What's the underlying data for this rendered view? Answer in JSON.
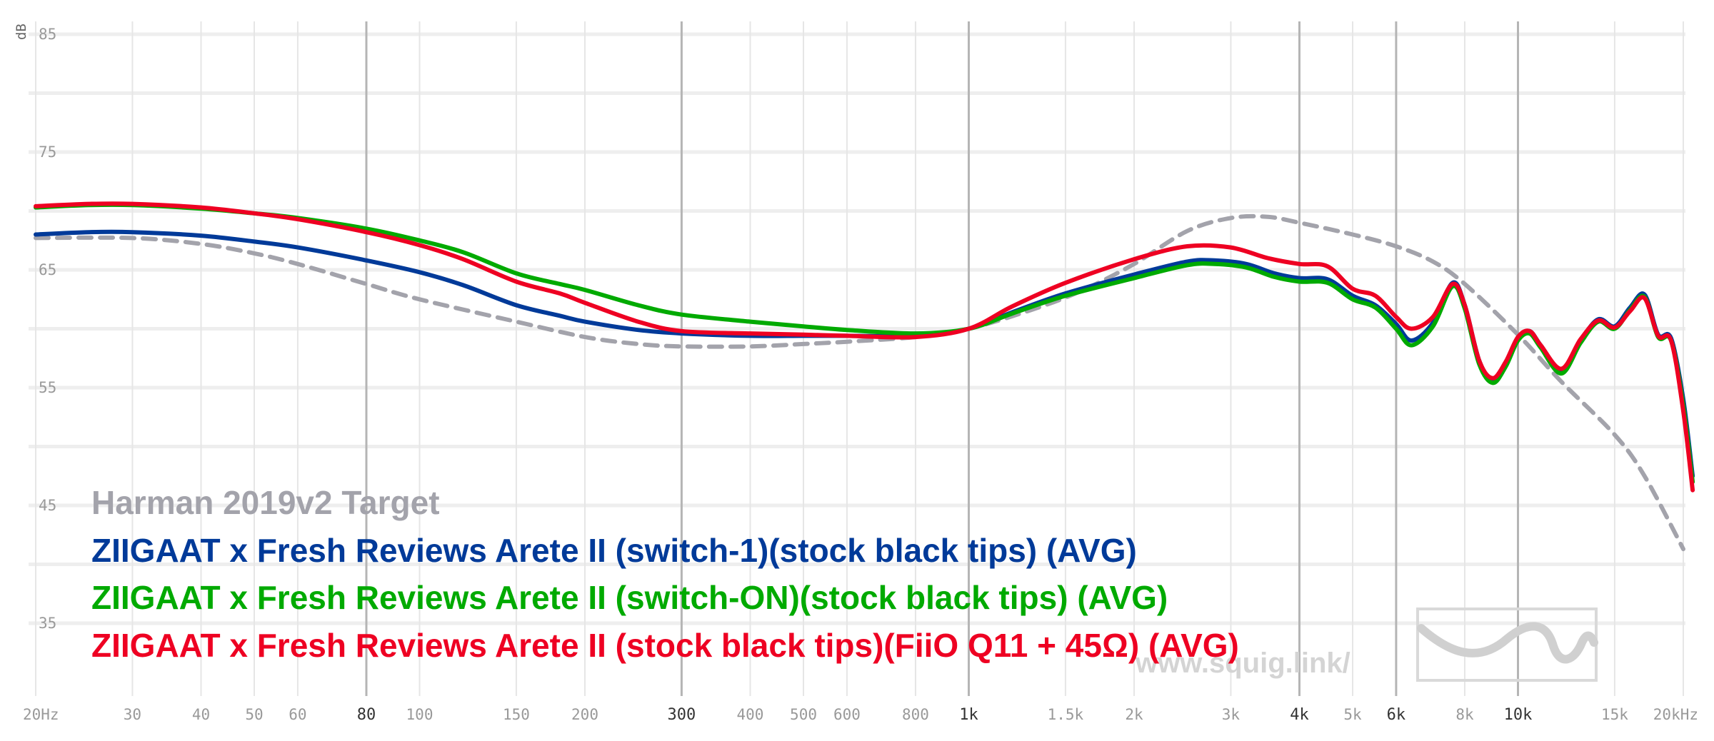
{
  "chart_data": {
    "type": "line",
    "ylabel": "dB",
    "ylim": [
      30,
      87
    ],
    "xlim": [
      20,
      20000
    ],
    "x_scale": "log",
    "yticks": [
      35,
      45,
      55,
      65,
      75,
      85
    ],
    "xticks": [
      {
        "label": "20Hz",
        "value": 20,
        "major": false
      },
      {
        "label": "30",
        "value": 30,
        "major": false
      },
      {
        "label": "40",
        "value": 40,
        "major": false
      },
      {
        "label": "50",
        "value": 50,
        "major": false
      },
      {
        "label": "60",
        "value": 60,
        "major": false
      },
      {
        "label": "80",
        "value": 80,
        "major": true
      },
      {
        "label": "100",
        "value": 100,
        "major": false
      },
      {
        "label": "150",
        "value": 150,
        "major": false
      },
      {
        "label": "200",
        "value": 200,
        "major": false
      },
      {
        "label": "300",
        "value": 300,
        "major": true
      },
      {
        "label": "400",
        "value": 400,
        "major": false
      },
      {
        "label": "500",
        "value": 500,
        "major": false
      },
      {
        "label": "600",
        "value": 600,
        "major": false
      },
      {
        "label": "800",
        "value": 800,
        "major": false
      },
      {
        "label": "1k",
        "value": 1000,
        "major": true
      },
      {
        "label": "1.5k",
        "value": 1500,
        "major": false
      },
      {
        "label": "2k",
        "value": 2000,
        "major": false
      },
      {
        "label": "3k",
        "value": 3000,
        "major": false
      },
      {
        "label": "4k",
        "value": 4000,
        "major": true
      },
      {
        "label": "5k",
        "value": 5000,
        "major": false
      },
      {
        "label": "6k",
        "value": 6000,
        "major": true
      },
      {
        "label": "8k",
        "value": 8000,
        "major": false
      },
      {
        "label": "10k",
        "value": 10000,
        "major": true
      },
      {
        "label": "15k",
        "value": 15000,
        "major": false
      },
      {
        "label": "20kHz",
        "value": 20000,
        "major": false
      }
    ],
    "grid": true,
    "legend_position": "bottom-left",
    "series": [
      {
        "name": "Harman 2019v2 Target",
        "color": "#a3a3ab",
        "dashed": true,
        "points": [
          [
            20,
            67.7
          ],
          [
            30,
            67.7
          ],
          [
            40,
            67.2
          ],
          [
            50,
            66.4
          ],
          [
            60,
            65.5
          ],
          [
            80,
            63.8
          ],
          [
            100,
            62.5
          ],
          [
            150,
            60.6
          ],
          [
            200,
            59.3
          ],
          [
            250,
            58.7
          ],
          [
            300,
            58.5
          ],
          [
            400,
            58.5
          ],
          [
            500,
            58.7
          ],
          [
            600,
            58.9
          ],
          [
            800,
            59.3
          ],
          [
            1000,
            60.0
          ],
          [
            1300,
            61.6
          ],
          [
            1600,
            63.2
          ],
          [
            2000,
            65.5
          ],
          [
            2500,
            68.3
          ],
          [
            3000,
            69.4
          ],
          [
            3500,
            69.5
          ],
          [
            4000,
            69.0
          ],
          [
            5000,
            68.0
          ],
          [
            6000,
            67.0
          ],
          [
            7000,
            65.7
          ],
          [
            8000,
            63.8
          ],
          [
            10000,
            59.5
          ],
          [
            12000,
            55.5
          ],
          [
            15000,
            51.0
          ],
          [
            17000,
            47.5
          ],
          [
            20000,
            41.3
          ]
        ]
      },
      {
        "name": "ZIIGAAT x Fresh Reviews Arete II (switch-1)(stock black tips) (AVG)",
        "color": "#003a99",
        "dashed": false,
        "points": [
          [
            20,
            68.0
          ],
          [
            25,
            68.2
          ],
          [
            30,
            68.2
          ],
          [
            40,
            67.9
          ],
          [
            50,
            67.4
          ],
          [
            60,
            66.9
          ],
          [
            80,
            65.8
          ],
          [
            100,
            64.8
          ],
          [
            120,
            63.7
          ],
          [
            150,
            62.0
          ],
          [
            180,
            61.1
          ],
          [
            200,
            60.6
          ],
          [
            250,
            59.9
          ],
          [
            300,
            59.6
          ],
          [
            400,
            59.4
          ],
          [
            500,
            59.4
          ],
          [
            600,
            59.4
          ],
          [
            800,
            59.4
          ],
          [
            1000,
            60.0
          ],
          [
            1200,
            61.4
          ],
          [
            1500,
            63.0
          ],
          [
            2000,
            64.6
          ],
          [
            2500,
            65.7
          ],
          [
            2800,
            65.8
          ],
          [
            3200,
            65.5
          ],
          [
            3600,
            64.7
          ],
          [
            4000,
            64.3
          ],
          [
            4500,
            64.2
          ],
          [
            5000,
            62.8
          ],
          [
            5500,
            62.0
          ],
          [
            6000,
            60.4
          ],
          [
            6400,
            59.0
          ],
          [
            7000,
            60.5
          ],
          [
            7600,
            63.9
          ],
          [
            8000,
            62.0
          ],
          [
            8500,
            57.3
          ],
          [
            9000,
            55.6
          ],
          [
            9500,
            57.0
          ],
          [
            10000,
            59.2
          ],
          [
            10500,
            59.8
          ],
          [
            11000,
            58.6
          ],
          [
            12000,
            56.4
          ],
          [
            13000,
            59.0
          ],
          [
            14000,
            60.8
          ],
          [
            15000,
            60.2
          ],
          [
            16000,
            61.8
          ],
          [
            17000,
            62.9
          ],
          [
            18000,
            59.5
          ],
          [
            19000,
            59.2
          ],
          [
            20000,
            54.0
          ],
          [
            20800,
            47.5
          ]
        ]
      },
      {
        "name": "ZIIGAAT x Fresh Reviews Arete II (switch-ON)(stock black tips) (AVG)",
        "color": "#00aa00",
        "dashed": false,
        "points": [
          [
            20,
            70.3
          ],
          [
            25,
            70.5
          ],
          [
            30,
            70.5
          ],
          [
            40,
            70.2
          ],
          [
            50,
            69.8
          ],
          [
            60,
            69.4
          ],
          [
            80,
            68.5
          ],
          [
            100,
            67.5
          ],
          [
            120,
            66.5
          ],
          [
            150,
            64.7
          ],
          [
            180,
            63.8
          ],
          [
            200,
            63.3
          ],
          [
            250,
            62.0
          ],
          [
            300,
            61.2
          ],
          [
            400,
            60.6
          ],
          [
            500,
            60.2
          ],
          [
            600,
            59.9
          ],
          [
            800,
            59.6
          ],
          [
            1000,
            60.0
          ],
          [
            1200,
            61.3
          ],
          [
            1500,
            62.8
          ],
          [
            2000,
            64.3
          ],
          [
            2500,
            65.4
          ],
          [
            2800,
            65.5
          ],
          [
            3200,
            65.2
          ],
          [
            3600,
            64.4
          ],
          [
            4000,
            64.0
          ],
          [
            4500,
            63.9
          ],
          [
            5000,
            62.5
          ],
          [
            5500,
            61.8
          ],
          [
            6000,
            60.0
          ],
          [
            6400,
            58.6
          ],
          [
            7000,
            60.2
          ],
          [
            7600,
            63.6
          ],
          [
            8000,
            61.7
          ],
          [
            8500,
            57.0
          ],
          [
            9000,
            55.4
          ],
          [
            9500,
            56.8
          ],
          [
            10000,
            59.0
          ],
          [
            10500,
            59.6
          ],
          [
            11000,
            58.4
          ],
          [
            12000,
            56.2
          ],
          [
            13000,
            58.8
          ],
          [
            14000,
            60.6
          ],
          [
            15000,
            60.0
          ],
          [
            16000,
            61.6
          ],
          [
            17000,
            62.7
          ],
          [
            18000,
            59.3
          ],
          [
            19000,
            59.0
          ],
          [
            20000,
            53.5
          ],
          [
            20800,
            47.0
          ]
        ]
      },
      {
        "name": "ZIIGAAT x Fresh Reviews Arete II (stock black tips)(FiiO Q11 + 45Ω) (AVG)",
        "color": "#ee0022",
        "dashed": false,
        "points": [
          [
            20,
            70.4
          ],
          [
            25,
            70.6
          ],
          [
            30,
            70.6
          ],
          [
            40,
            70.3
          ],
          [
            50,
            69.8
          ],
          [
            60,
            69.3
          ],
          [
            80,
            68.2
          ],
          [
            100,
            67.1
          ],
          [
            120,
            65.9
          ],
          [
            150,
            64.0
          ],
          [
            180,
            63.0
          ],
          [
            200,
            62.2
          ],
          [
            250,
            60.6
          ],
          [
            300,
            59.8
          ],
          [
            400,
            59.6
          ],
          [
            500,
            59.5
          ],
          [
            600,
            59.4
          ],
          [
            800,
            59.3
          ],
          [
            1000,
            60.0
          ],
          [
            1200,
            61.9
          ],
          [
            1500,
            63.9
          ],
          [
            2000,
            65.9
          ],
          [
            2500,
            67.0
          ],
          [
            3000,
            66.9
          ],
          [
            3500,
            66.0
          ],
          [
            4000,
            65.5
          ],
          [
            4500,
            65.3
          ],
          [
            5000,
            63.4
          ],
          [
            5500,
            62.8
          ],
          [
            6000,
            61.0
          ],
          [
            6400,
            60.0
          ],
          [
            7000,
            61.0
          ],
          [
            7600,
            63.8
          ],
          [
            8000,
            62.0
          ],
          [
            8500,
            57.3
          ],
          [
            9000,
            55.8
          ],
          [
            9500,
            57.2
          ],
          [
            10000,
            59.3
          ],
          [
            10500,
            59.8
          ],
          [
            11000,
            58.6
          ],
          [
            12000,
            56.6
          ],
          [
            13000,
            59.1
          ],
          [
            14000,
            60.7
          ],
          [
            15000,
            60.1
          ],
          [
            16000,
            61.5
          ],
          [
            17000,
            62.6
          ],
          [
            18000,
            59.4
          ],
          [
            19000,
            59.0
          ],
          [
            20000,
            53.0
          ],
          [
            20800,
            46.3
          ]
        ]
      }
    ]
  },
  "watermark": {
    "text": "www.squig.link/",
    "logo_icon": "wave-logo-icon"
  }
}
